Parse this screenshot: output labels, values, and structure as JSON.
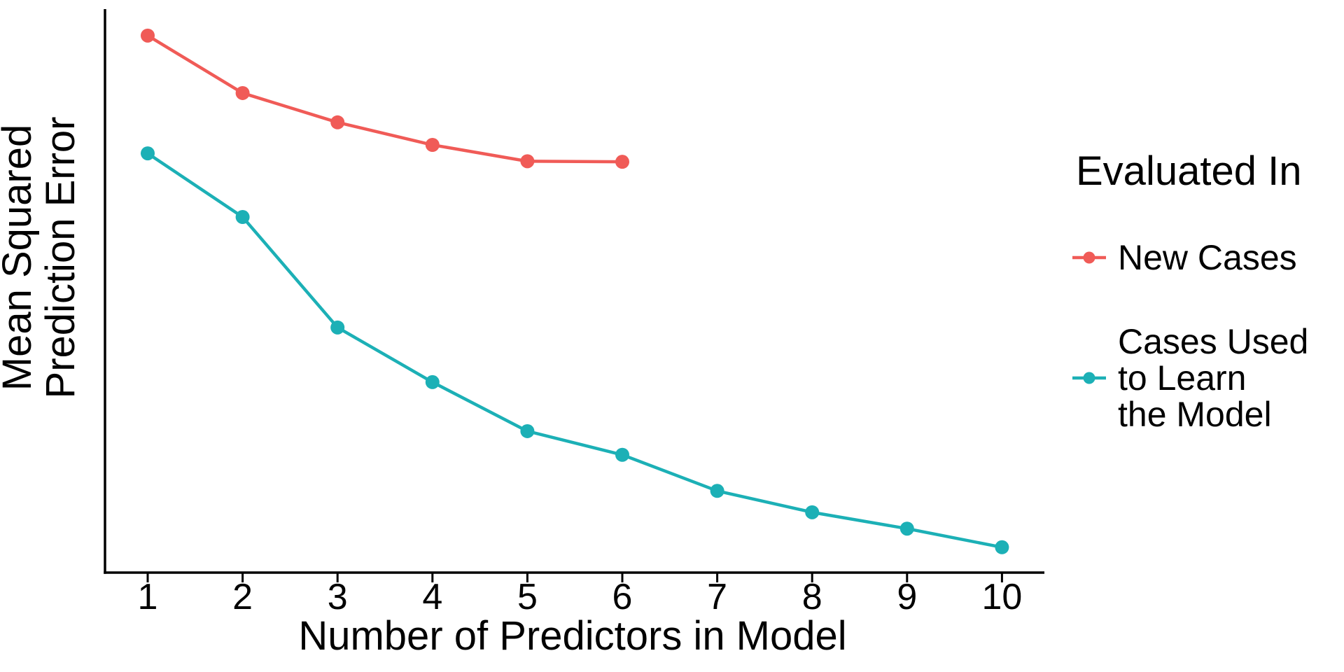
{
  "figure": {
    "background": "#FFFFFF",
    "axis_color": "#000000",
    "text_color": "#000000"
  },
  "axes": {
    "x_label": "Number of Predictors in Model",
    "y_label_line1": "Mean Squared",
    "y_label_line2": "Prediction Error"
  },
  "legend": {
    "title": "Evaluated In",
    "position": "right",
    "items": [
      {
        "label": "New Cases",
        "label_lines": [
          "New Cases"
        ],
        "color": "#F05B57",
        "marker": "point-on-line"
      },
      {
        "label": "Cases Used to Learn the Model",
        "label_lines": [
          "Cases Used",
          "to Learn",
          "the Model"
        ],
        "color": "#1CB0B6",
        "marker": "point-on-line"
      }
    ]
  },
  "chart_data": {
    "type": "line",
    "title": "",
    "xlabel": "Number of Predictors in Model",
    "ylabel": "Mean Squared Prediction Error",
    "x": [
      1,
      2,
      3,
      4,
      5,
      6,
      7,
      8,
      9,
      10
    ],
    "xlim": [
      0.55,
      10.45
    ],
    "ylim": [
      0,
      100
    ],
    "grid": false,
    "y_axis_tick_labels": "none",
    "legend_position": "right",
    "legend_title": "Evaluated In",
    "series": [
      {
        "name": "New Cases",
        "color": "#F05B57",
        "x": [
          1,
          2,
          3,
          4,
          5,
          6
        ],
        "values": [
          95.3,
          85.1,
          79.9,
          75.9,
          73.0,
          72.9
        ]
      },
      {
        "name": "Cases Used to Learn the Model",
        "color": "#1CB0B6",
        "x": [
          1,
          2,
          3,
          4,
          5,
          6,
          7,
          8,
          9,
          10
        ],
        "values": [
          74.4,
          63.1,
          43.5,
          33.8,
          25.1,
          20.9,
          14.5,
          10.7,
          7.8,
          4.5
        ]
      }
    ]
  }
}
